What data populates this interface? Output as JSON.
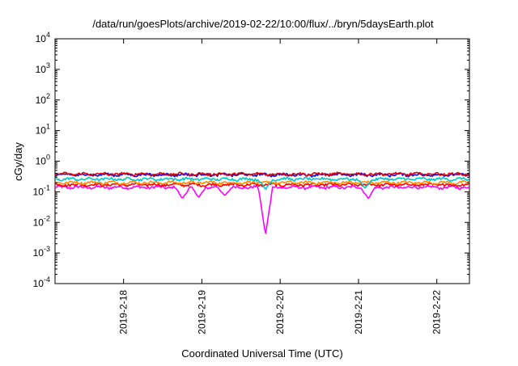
{
  "chart_data": {
    "type": "line",
    "title": "/data/run/goesPlots/archive/2019-02-22/10:00/flux/../bryn/5daysEarth.plot",
    "xlabel": "Coordinated Universal Time (UTC)",
    "ylabel": "cGy/day",
    "yscale": "log",
    "ylim": [
      0.0001,
      10000
    ],
    "y_ticks": [
      {
        "value": 0.0001,
        "base": "10",
        "exp": "-4"
      },
      {
        "value": 0.001,
        "base": "10",
        "exp": "-3"
      },
      {
        "value": 0.01,
        "base": "10",
        "exp": "-2"
      },
      {
        "value": 0.1,
        "base": "10",
        "exp": "-1"
      },
      {
        "value": 1,
        "base": "10",
        "exp": "0"
      },
      {
        "value": 10,
        "base": "10",
        "exp": "1"
      },
      {
        "value": 100,
        "base": "10",
        "exp": "2"
      },
      {
        "value": 1000,
        "base": "10",
        "exp": "3"
      },
      {
        "value": 10000,
        "base": "10",
        "exp": "4"
      }
    ],
    "xlim": [
      "2019-02-17T03:00",
      "2019-02-22T10:00"
    ],
    "x_ticks": [
      "2019-2-18",
      "2019-2-19",
      "2019-2-20",
      "2019-2-21",
      "2019-2-22"
    ],
    "grid": false,
    "legend": "none",
    "series": [
      {
        "color": "#ff00ff",
        "base": 0.14,
        "dips": [
          {
            "x": "2019-02-18T18:00",
            "y": 0.06
          },
          {
            "x": "2019-02-18T23:00",
            "y": 0.065
          },
          {
            "x": "2019-02-19T07:00",
            "y": 0.075
          },
          {
            "x": "2019-02-19T19:30",
            "y": 0.004
          },
          {
            "x": "2019-02-21T03:00",
            "y": 0.06
          }
        ]
      },
      {
        "color": "#ff0000",
        "base": 0.17,
        "dips": []
      },
      {
        "color": "#ff8c00",
        "base": 0.2,
        "dips": []
      },
      {
        "color": "#00c8c8",
        "base": 0.26,
        "dips": [
          {
            "x": "2019-02-19T19:30",
            "y": 0.12
          },
          {
            "x": "2019-02-21T02:00",
            "y": 0.13
          }
        ]
      },
      {
        "color": "#0000ff",
        "base": 0.36,
        "dips": []
      },
      {
        "color": "#e00000",
        "base": 0.38,
        "dips": []
      }
    ]
  }
}
